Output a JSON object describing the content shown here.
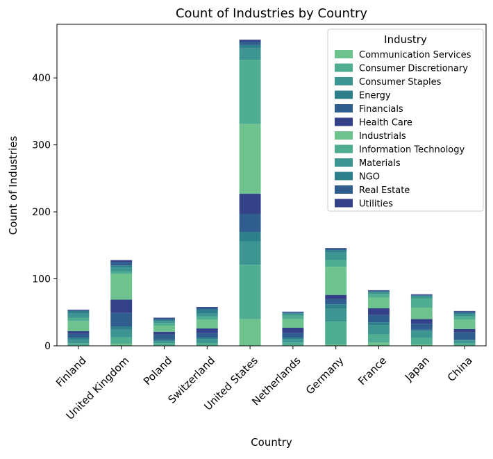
{
  "chart_data": {
    "type": "bar",
    "stacked": true,
    "title": "Count of Industries by Country",
    "xlabel": "Country",
    "ylabel": "Count of Industries",
    "ylim": [
      0,
      480
    ],
    "yticks": [
      0,
      100,
      200,
      300,
      400
    ],
    "grid": false,
    "legend_title": "Industry",
    "legend_position": "top-right",
    "categories": [
      "Finland",
      "United Kingdom",
      "Poland",
      "Switzerland",
      "United States",
      "Netherlands",
      "Germany",
      "France",
      "Japan",
      "China"
    ],
    "series": [
      {
        "name": "Communication Services",
        "color": "#6ec28d",
        "values": [
          1,
          3,
          1,
          1,
          40,
          1,
          2,
          5,
          2,
          1
        ]
      },
      {
        "name": "Consumer Discretionary",
        "color": "#4fae91",
        "values": [
          3,
          10,
          3,
          3,
          81,
          4,
          34,
          12,
          10,
          3
        ]
      },
      {
        "name": "Consumer Staples",
        "color": "#3c9590",
        "values": [
          5,
          11,
          3,
          6,
          35,
          5,
          20,
          14,
          10,
          4
        ]
      },
      {
        "name": "Energy",
        "color": "#2e7f8c",
        "values": [
          3,
          5,
          2,
          2,
          14,
          2,
          6,
          4,
          2,
          1
        ]
      },
      {
        "name": "Financials",
        "color": "#2f5e8e",
        "values": [
          6,
          20,
          8,
          7,
          27,
          7,
          8,
          11,
          9,
          11
        ]
      },
      {
        "name": "Health Care",
        "color": "#344087",
        "values": [
          4,
          20,
          4,
          7,
          30,
          8,
          6,
          10,
          7,
          5
        ]
      },
      {
        "name": "Industrials",
        "color": "#6ec28d",
        "values": [
          15,
          38,
          9,
          13,
          104,
          13,
          42,
          16,
          17,
          14
        ]
      },
      {
        "name": "Information Technology",
        "color": "#4fae91",
        "values": [
          5,
          4,
          4,
          5,
          96,
          5,
          10,
          5,
          14,
          5
        ]
      },
      {
        "name": "Materials",
        "color": "#3c9590",
        "values": [
          6,
          6,
          3,
          4,
          17,
          3,
          12,
          3,
          3,
          3
        ]
      },
      {
        "name": "NGO",
        "color": "#2e7f8c",
        "values": [
          4,
          3,
          2,
          6,
          5,
          1,
          3,
          1,
          1,
          2
        ]
      },
      {
        "name": "Real Estate",
        "color": "#2f5e8e",
        "values": [
          1,
          5,
          2,
          3,
          5,
          1,
          2,
          1,
          1,
          2
        ]
      },
      {
        "name": "Utilities",
        "color": "#344087",
        "values": [
          1,
          3,
          1,
          1,
          3,
          1,
          1,
          1,
          1,
          1
        ]
      }
    ]
  }
}
